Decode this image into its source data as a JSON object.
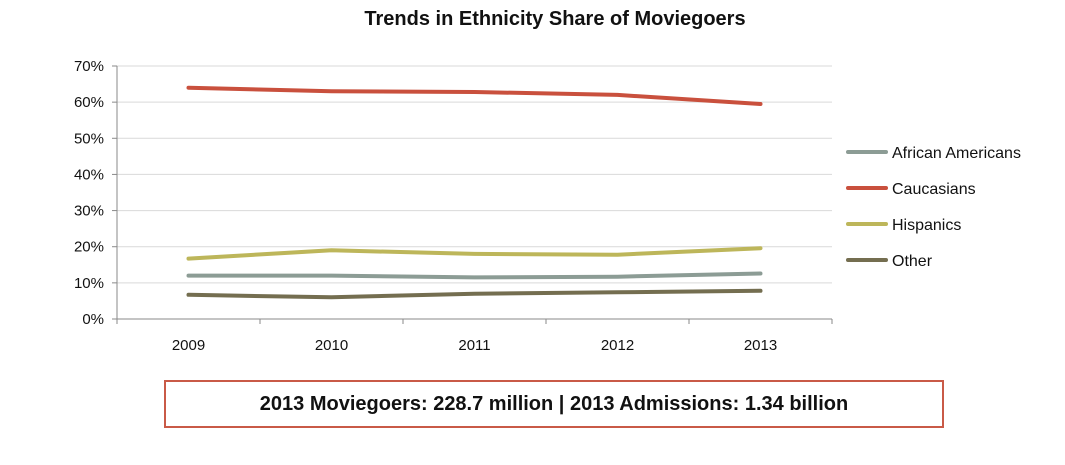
{
  "chart_data": {
    "type": "line",
    "title": "Trends in Ethnicity Share of Moviegoers",
    "xlabel": "",
    "ylabel": "",
    "categories": [
      "2009",
      "2010",
      "2011",
      "2012",
      "2013"
    ],
    "ylim": [
      0,
      70
    ],
    "y_ticks": [
      "0%",
      "10%",
      "20%",
      "30%",
      "40%",
      "50%",
      "60%",
      "70%"
    ],
    "grid": true,
    "legend_position": "right",
    "series": [
      {
        "name": "African Americans",
        "color": "#8c9c95",
        "values": [
          12,
          12,
          11.5,
          11.7,
          12.6
        ]
      },
      {
        "name": "Caucasians",
        "color": "#c9503d",
        "values": [
          64,
          63,
          62.8,
          62,
          59.5
        ]
      },
      {
        "name": "Hispanics",
        "color": "#bdb65a",
        "values": [
          16.7,
          19,
          18,
          17.8,
          19.6
        ]
      },
      {
        "name": "Other",
        "color": "#746e50",
        "values": [
          6.7,
          6,
          7,
          7.4,
          7.8
        ]
      }
    ]
  },
  "summary": {
    "text": "2013 Moviegoers: 228.7 million | 2013 Admissions: 1.34 billion",
    "border_color": "#c95a47"
  }
}
